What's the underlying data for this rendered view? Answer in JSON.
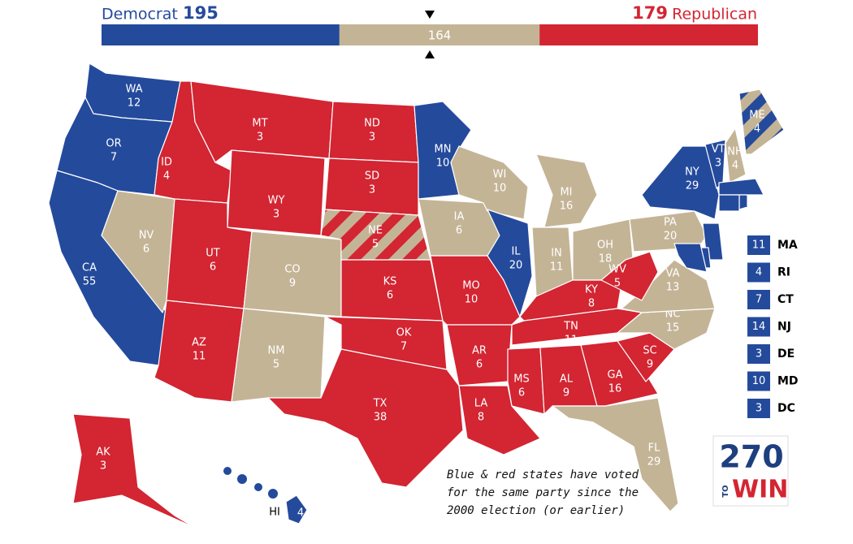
{
  "header": {
    "democrat_label": "Democrat",
    "democrat_total": 195,
    "democrat_color": "#244a9c",
    "tossup_total": 164,
    "tossup_color": "#c4b496",
    "republican_total": 179,
    "republican_label": "Republican",
    "republican_color": "#d32532"
  },
  "states": [
    {
      "abbr": "WA",
      "votes": 12,
      "color": "#244a9c"
    },
    {
      "abbr": "OR",
      "votes": 7,
      "color": "#244a9c"
    },
    {
      "abbr": "CA",
      "votes": 55,
      "color": "#244a9c"
    },
    {
      "abbr": "NV",
      "votes": 6,
      "color": "#c4b496"
    },
    {
      "abbr": "ID",
      "votes": 4,
      "color": "#d32532"
    },
    {
      "abbr": "MT",
      "votes": 3,
      "color": "#d32532"
    },
    {
      "abbr": "WY",
      "votes": 3,
      "color": "#d32532"
    },
    {
      "abbr": "UT",
      "votes": 6,
      "color": "#d32532"
    },
    {
      "abbr": "AZ",
      "votes": 11,
      "color": "#d32532"
    },
    {
      "abbr": "CO",
      "votes": 9,
      "color": "#c4b496"
    },
    {
      "abbr": "NM",
      "votes": 5,
      "color": "#c4b496"
    },
    {
      "abbr": "ND",
      "votes": 3,
      "color": "#d32532"
    },
    {
      "abbr": "SD",
      "votes": 3,
      "color": "#d32532"
    },
    {
      "abbr": "NE",
      "votes": 5,
      "color": "#d32532",
      "stripes": [
        "#d32532",
        "#c4b496"
      ]
    },
    {
      "abbr": "KS",
      "votes": 6,
      "color": "#d32532"
    },
    {
      "abbr": "OK",
      "votes": 7,
      "color": "#d32532"
    },
    {
      "abbr": "TX",
      "votes": 38,
      "color": "#d32532"
    },
    {
      "abbr": "MN",
      "votes": 10,
      "color": "#244a9c"
    },
    {
      "abbr": "IA",
      "votes": 6,
      "color": "#c4b496"
    },
    {
      "abbr": "MO",
      "votes": 10,
      "color": "#d32532"
    },
    {
      "abbr": "AR",
      "votes": 6,
      "color": "#d32532"
    },
    {
      "abbr": "LA",
      "votes": 8,
      "color": "#d32532"
    },
    {
      "abbr": "WI",
      "votes": 10,
      "color": "#c4b496"
    },
    {
      "abbr": "IL",
      "votes": 20,
      "color": "#244a9c"
    },
    {
      "abbr": "MI",
      "votes": 16,
      "color": "#c4b496"
    },
    {
      "abbr": "IN",
      "votes": 11,
      "color": "#c4b496"
    },
    {
      "abbr": "OH",
      "votes": 18,
      "color": "#c4b496"
    },
    {
      "abbr": "KY",
      "votes": 8,
      "color": "#d32532"
    },
    {
      "abbr": "TN",
      "votes": 11,
      "color": "#d32532"
    },
    {
      "abbr": "MS",
      "votes": 6,
      "color": "#d32532"
    },
    {
      "abbr": "AL",
      "votes": 9,
      "color": "#d32532"
    },
    {
      "abbr": "GA",
      "votes": 16,
      "color": "#d32532"
    },
    {
      "abbr": "FL",
      "votes": 29,
      "color": "#c4b496"
    },
    {
      "abbr": "SC",
      "votes": 9,
      "color": "#d32532"
    },
    {
      "abbr": "NC",
      "votes": 15,
      "color": "#c4b496"
    },
    {
      "abbr": "VA",
      "votes": 13,
      "color": "#c4b496"
    },
    {
      "abbr": "WV",
      "votes": 5,
      "color": "#d32532"
    },
    {
      "abbr": "PA",
      "votes": 20,
      "color": "#c4b496"
    },
    {
      "abbr": "NY",
      "votes": 29,
      "color": "#244a9c"
    },
    {
      "abbr": "VT",
      "votes": 3,
      "color": "#244a9c"
    },
    {
      "abbr": "NH",
      "votes": 4,
      "color": "#c4b496"
    },
    {
      "abbr": "ME",
      "votes": 4,
      "color": "#244a9c",
      "stripes": [
        "#244a9c",
        "#c4b496"
      ]
    },
    {
      "abbr": "AK",
      "votes": 3,
      "color": "#d32532"
    },
    {
      "abbr": "HI",
      "votes": 4,
      "color": "#244a9c"
    }
  ],
  "small_states": [
    {
      "abbr": "MA",
      "votes": 11,
      "color": "#244a9c"
    },
    {
      "abbr": "RI",
      "votes": 4,
      "color": "#244a9c"
    },
    {
      "abbr": "CT",
      "votes": 7,
      "color": "#244a9c"
    },
    {
      "abbr": "NJ",
      "votes": 14,
      "color": "#244a9c"
    },
    {
      "abbr": "DE",
      "votes": 3,
      "color": "#244a9c"
    },
    {
      "abbr": "MD",
      "votes": 10,
      "color": "#244a9c"
    },
    {
      "abbr": "DC",
      "votes": 3,
      "color": "#244a9c"
    }
  ],
  "note": [
    "Blue & red states have voted",
    "for the same party since the",
    "2000 election (or earlier)"
  ],
  "logo": {
    "number": "270",
    "to": "TO",
    "win": "WIN"
  }
}
